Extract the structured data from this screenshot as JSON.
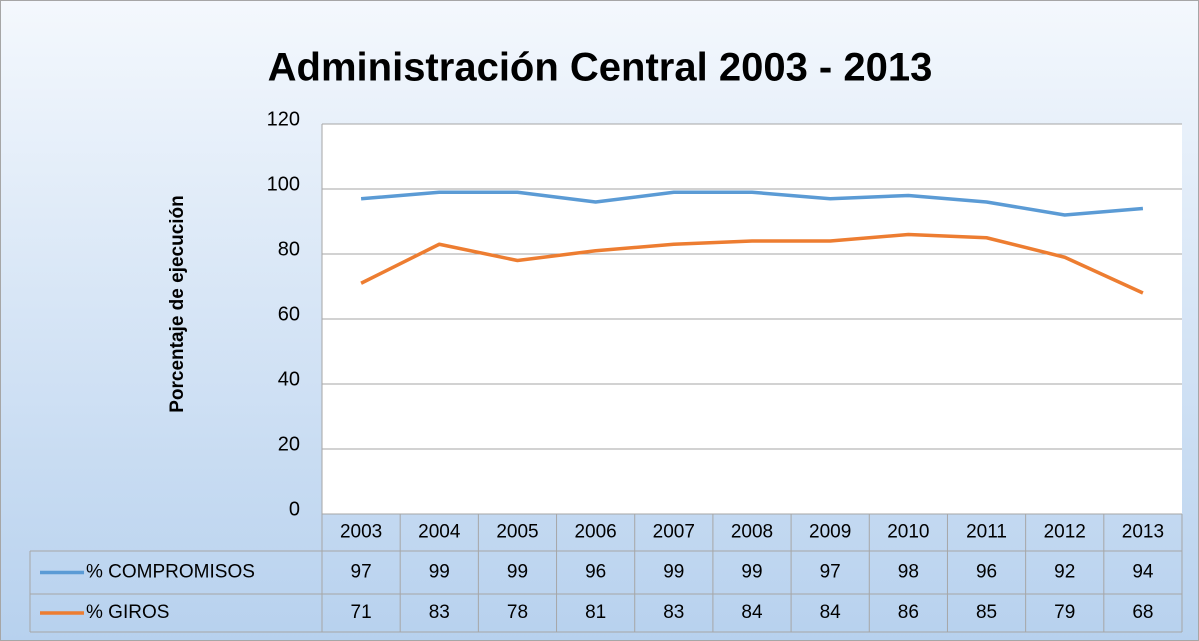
{
  "chart_data": {
    "type": "line",
    "title": "Administración Central  2003 - 2013",
    "y_label": "Porcentaje de ejecución",
    "categories": [
      "2003",
      "2004",
      "2005",
      "2006",
      "2007",
      "2008",
      "2009",
      "2010",
      "2011",
      "2012",
      "2013"
    ],
    "series": [
      {
        "name": "% COMPROMISOS",
        "color": "#5b9bd5",
        "values": [
          97,
          99,
          99,
          96,
          99,
          99,
          97,
          98,
          96,
          92,
          94
        ]
      },
      {
        "name": "% GIROS",
        "color": "#ed7d31",
        "values": [
          71,
          83,
          78,
          81,
          83,
          84,
          84,
          86,
          85,
          79,
          68
        ]
      }
    ],
    "ylim": [
      0,
      120
    ],
    "yticks": [
      0,
      20,
      40,
      60,
      80,
      100,
      120
    ],
    "grid": true,
    "data_table": true
  }
}
